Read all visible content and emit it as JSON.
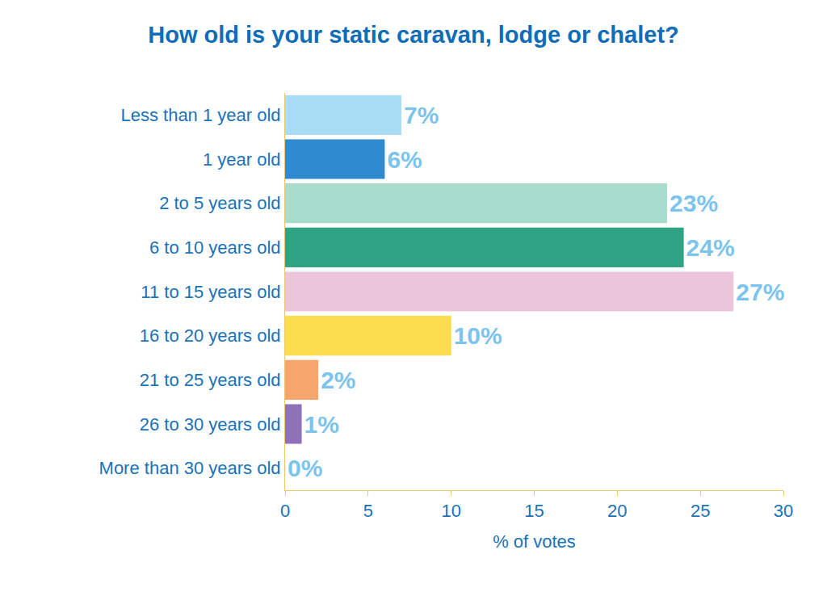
{
  "chart_data": {
    "type": "bar",
    "orientation": "horizontal",
    "title": "How old is your static caravan, lodge or chalet?",
    "categories": [
      "Less than 1 year old",
      "1 year old",
      "2 to 5 years old",
      "6 to 10 years old",
      "11 to 15 years old",
      "16 to 20 years old",
      "21 to 25 years old",
      "26 to 30 years old",
      "More than 30 years old"
    ],
    "values": [
      7,
      6,
      23,
      24,
      27,
      10,
      2,
      1,
      0
    ],
    "value_labels": [
      "7%",
      "6%",
      "23%",
      "24%",
      "27%",
      "10%",
      "2%",
      "1%",
      "0%"
    ],
    "colors": [
      "#a9dcf5",
      "#2f8ad0",
      "#a8dccd",
      "#2fa384",
      "#ebc6da",
      "#fbdc4e",
      "#f6a66c",
      "#8d72b8",
      "#c8c8c8"
    ],
    "xlabel": "% of votes",
    "xlim": [
      0,
      30
    ],
    "xticks": [
      0,
      5,
      10,
      15,
      20,
      25,
      30
    ],
    "data_labels": true,
    "grid": false
  }
}
